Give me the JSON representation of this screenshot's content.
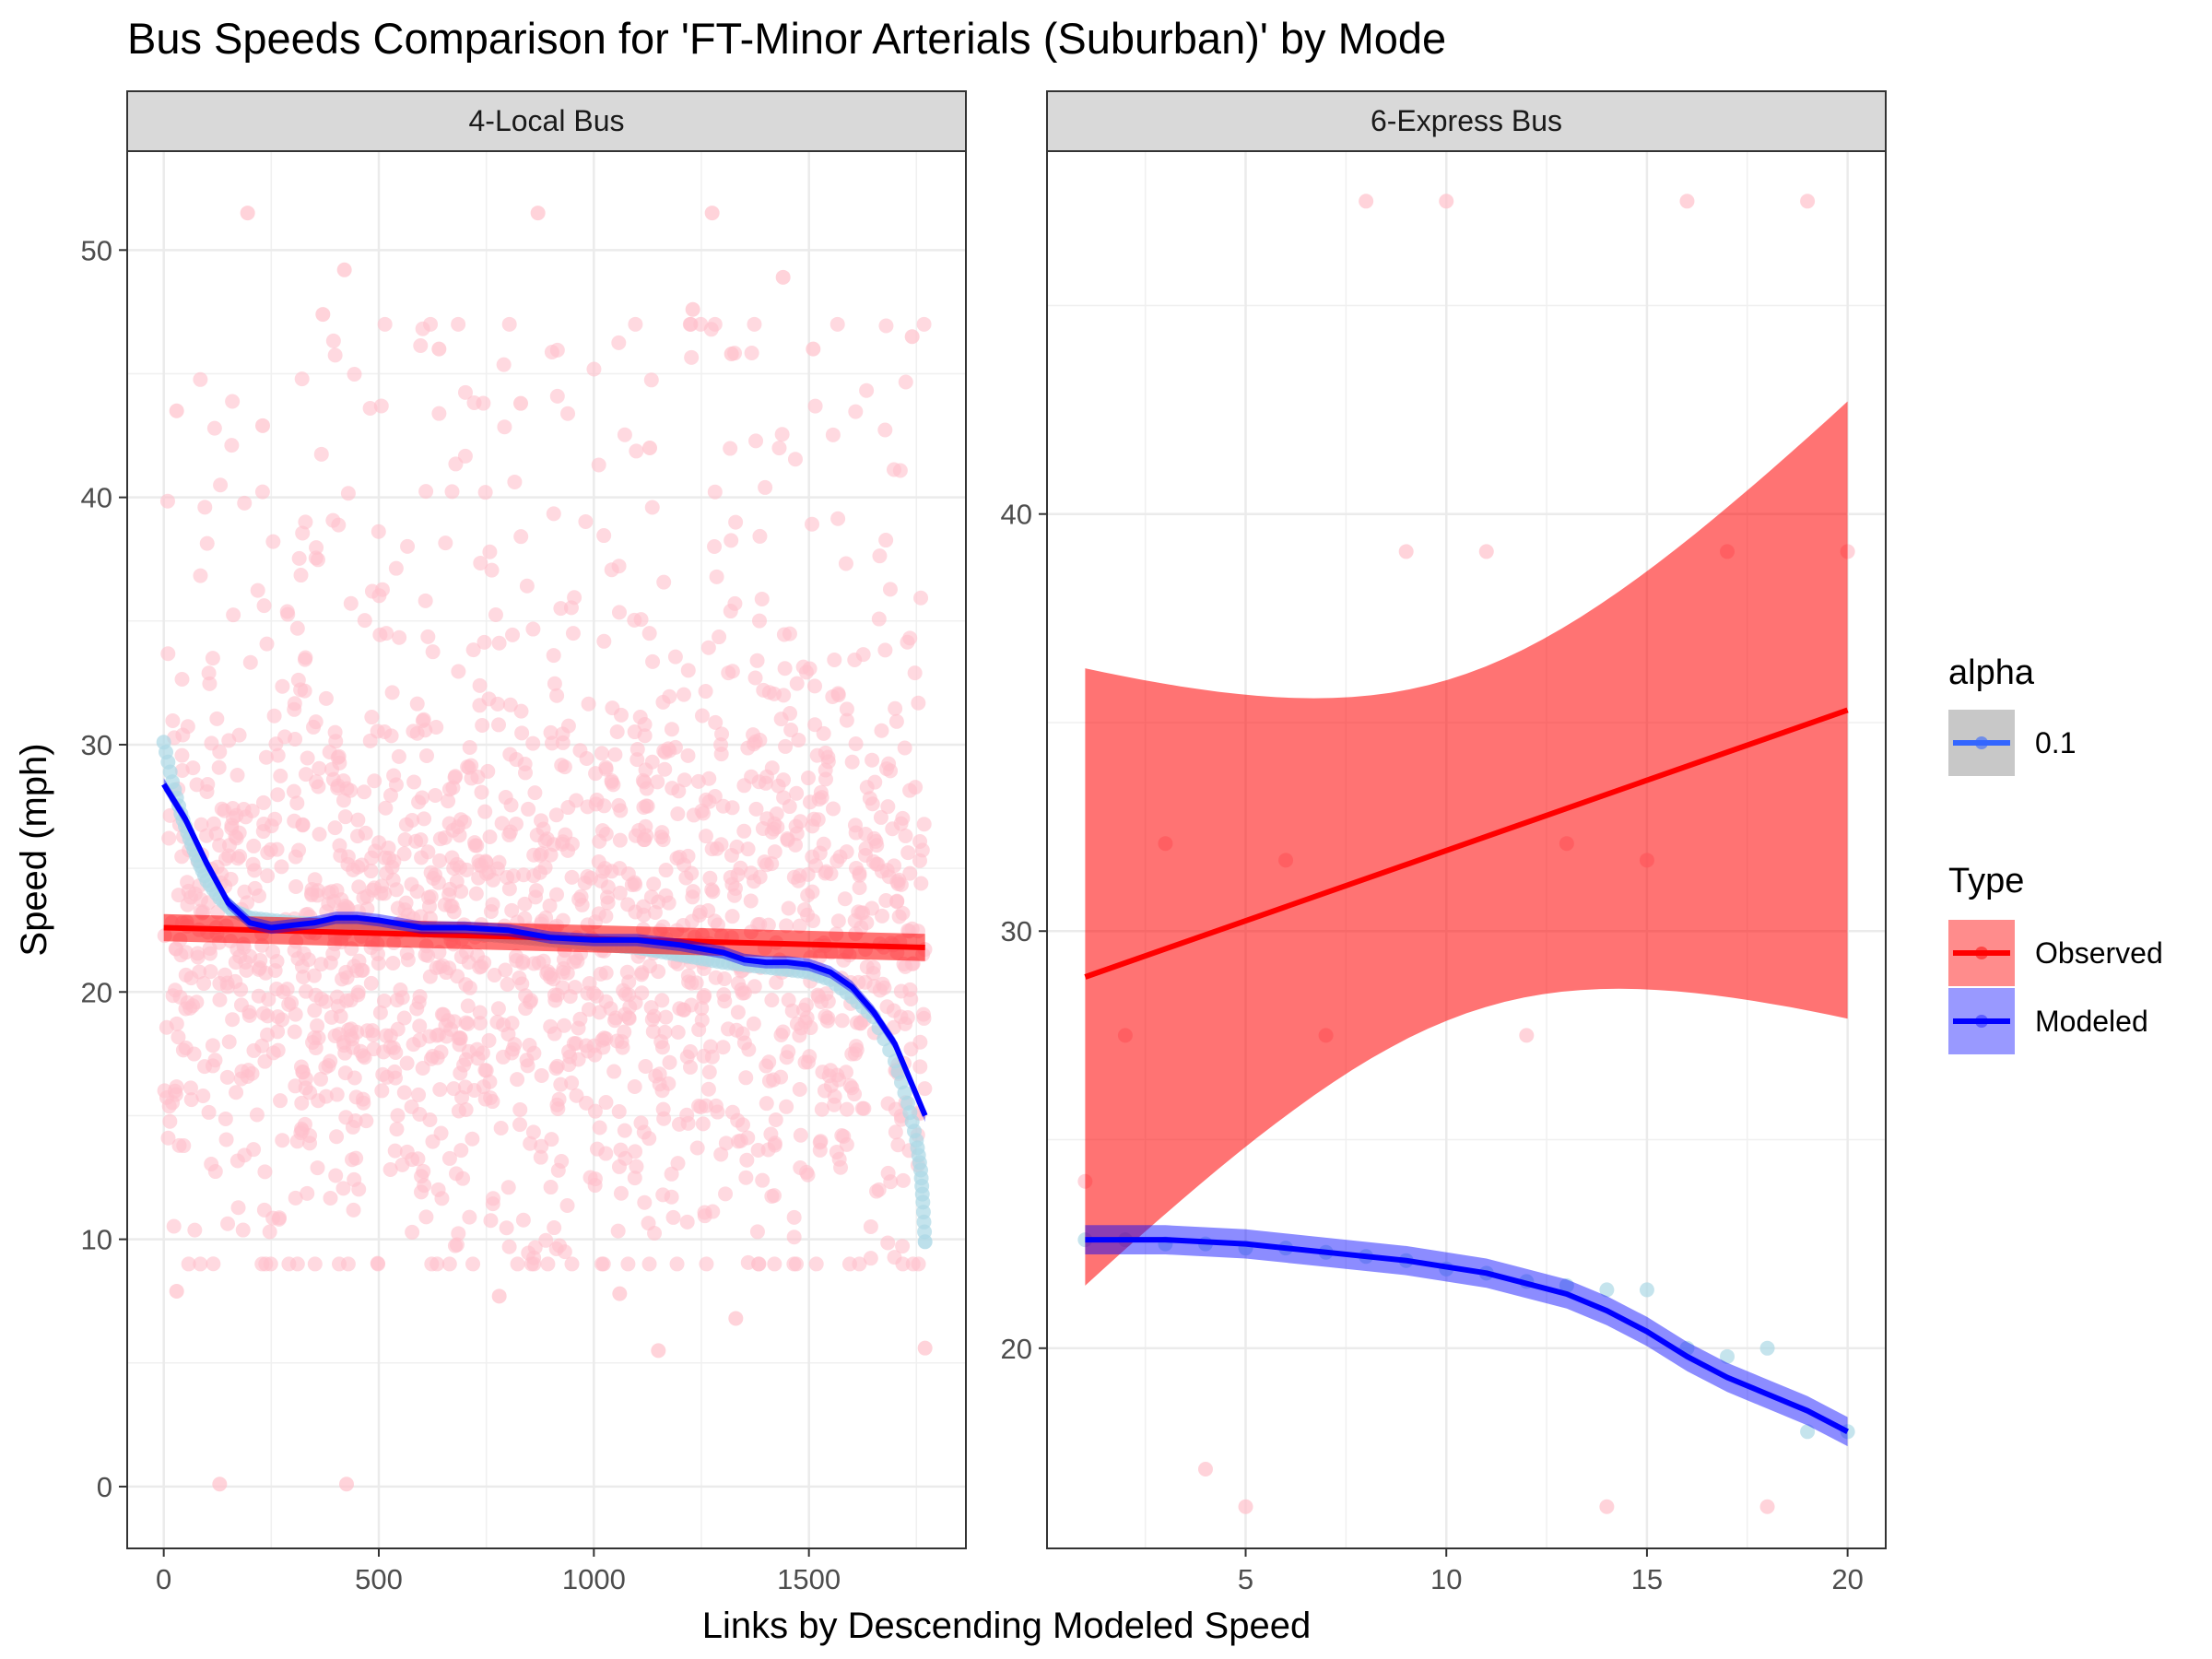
{
  "chart_data": {
    "type": "scatter",
    "title": "Bus Speeds Comparison for 'FT-Minor Arterials (Suburban)' by Mode",
    "xlabel": "Links by Descending Modeled Speed",
    "ylabel": "Speed (mph)",
    "grid": true,
    "legend_position": "right",
    "colors": {
      "observed_points": "#ffc0cb",
      "modeled_points": "#add8e6",
      "observed_line": "#ff0000",
      "modeled_line": "#0000ff",
      "observed_band": "#ff0000",
      "modeled_band": "#0000ff"
    },
    "legends": [
      {
        "title": "alpha",
        "entries": [
          {
            "label": "0.1",
            "color": "#3366ff"
          }
        ]
      },
      {
        "title": "Type",
        "entries": [
          {
            "label": "Observed",
            "color": "#ff0000"
          },
          {
            "label": "Modeled",
            "color": "#0000ff"
          }
        ]
      }
    ],
    "panels": [
      {
        "strip": "4-Local Bus",
        "xlim": [
          -85,
          1865
        ],
        "ylim": [
          -2.5,
          54
        ],
        "xticks": [
          0,
          500,
          1000,
          1500
        ],
        "yticks": [
          0,
          10,
          20,
          30,
          40,
          50
        ],
        "observed_points": {
          "n": 1770,
          "note": "Observed speeds scattered between 0 and 52 mph across link index 0–1770, concentrated between 12 and 30 mph",
          "outliers": [
            [
              130,
              0.1
            ],
            [
              425,
              0.1
            ],
            [
              195,
              51.5
            ],
            [
              870,
              51.5
            ],
            [
              1275,
              51.5
            ],
            [
              420,
              49.2
            ],
            [
              1440,
              48.9
            ],
            [
              1740,
              46.5
            ],
            [
              370,
              47.4
            ],
            [
              1230,
              47.6
            ],
            [
              640,
              46.0
            ],
            [
              1510,
              46.0
            ],
            [
              30,
              43.5
            ],
            [
              830,
              43.8
            ],
            [
              1320,
              45.8
            ],
            [
              1130,
              42.0
            ],
            [
              230,
              42.9
            ],
            [
              1150,
              5.5
            ],
            [
              1770,
              5.6
            ],
            [
              30,
              7.9
            ],
            [
              1060,
              7.8
            ],
            [
              780,
              7.7
            ],
            [
              1330,
              6.8
            ]
          ]
        },
        "modeled_points": {
          "x": [
            0,
            20,
            40,
            60,
            80,
            100,
            130,
            160,
            200,
            300,
            500,
            700,
            900,
            1100,
            1300,
            1400,
            1500,
            1550,
            1600,
            1650,
            1700,
            1730,
            1750,
            1760,
            1765,
            1770
          ],
          "y": [
            30.1,
            28.5,
            27.2,
            26.2,
            25.3,
            24.5,
            23.8,
            23.3,
            23.0,
            22.8,
            22.6,
            22.4,
            22.1,
            21.8,
            21.2,
            21.0,
            20.8,
            20.5,
            19.8,
            19.0,
            17.2,
            15.5,
            14.0,
            12.8,
            11.5,
            9.9
          ]
        },
        "observed_trend": {
          "x": [
            0,
            1770
          ],
          "y": [
            22.6,
            21.8
          ],
          "ci_halfwidth": 0.55
        },
        "modeled_trend": {
          "x": [
            0,
            50,
            100,
            150,
            200,
            250,
            300,
            350,
            400,
            450,
            500,
            600,
            700,
            800,
            900,
            1000,
            1100,
            1200,
            1300,
            1350,
            1400,
            1450,
            1500,
            1550,
            1600,
            1650,
            1700,
            1770
          ],
          "y": [
            28.4,
            27.0,
            25.2,
            23.6,
            22.8,
            22.6,
            22.7,
            22.8,
            23.0,
            23.0,
            22.9,
            22.6,
            22.6,
            22.5,
            22.2,
            22.1,
            22.1,
            21.9,
            21.6,
            21.3,
            21.2,
            21.2,
            21.1,
            20.8,
            20.2,
            19.2,
            17.9,
            15.0
          ],
          "ci_halfwidth": 0.25
        }
      },
      {
        "strip": "6-Express Bus",
        "xlim": [
          0.05,
          20.95
        ],
        "ylim": [
          15.2,
          48.7
        ],
        "xticks": [
          5,
          10,
          15,
          20
        ],
        "yticks": [
          20,
          30,
          40
        ],
        "observed_points": {
          "x": [
            1,
            2,
            3,
            4,
            5,
            6,
            7,
            8,
            9,
            10,
            11,
            12,
            13,
            14,
            15,
            16,
            17,
            18,
            19,
            20
          ],
          "y": [
            24.0,
            27.5,
            32.1,
            17.1,
            16.2,
            31.7,
            27.5,
            47.5,
            39.1,
            47.5,
            39.1,
            27.5,
            32.1,
            16.2,
            31.7,
            47.5,
            39.1,
            16.2,
            47.5,
            39.1
          ]
        },
        "modeled_points": {
          "x": [
            1,
            2,
            3,
            4,
            5,
            6,
            7,
            8,
            9,
            10,
            11,
            12,
            13,
            14,
            15,
            16,
            17,
            18,
            19,
            20
          ],
          "y": [
            22.6,
            22.6,
            22.5,
            22.5,
            22.4,
            22.4,
            22.3,
            22.2,
            22.1,
            21.9,
            21.8,
            21.6,
            21.5,
            21.4,
            21.4,
            20.0,
            19.8,
            20.0,
            18.0,
            18.0
          ]
        },
        "observed_trend": {
          "x": [
            1,
            20
          ],
          "y": [
            28.9,
            35.3
          ],
          "ci_lower": [
            21.5,
            27.9
          ],
          "ci_upper": [
            36.3,
            42.7
          ]
        },
        "modeled_trend": {
          "x": [
            1,
            3,
            5,
            7,
            9,
            11,
            13,
            14,
            15,
            16,
            17,
            18,
            19,
            20
          ],
          "y": [
            22.6,
            22.6,
            22.5,
            22.3,
            22.1,
            21.8,
            21.3,
            20.9,
            20.4,
            19.8,
            19.3,
            18.9,
            18.5,
            18.0
          ],
          "ci_halfwidth": 0.35
        }
      }
    ]
  }
}
